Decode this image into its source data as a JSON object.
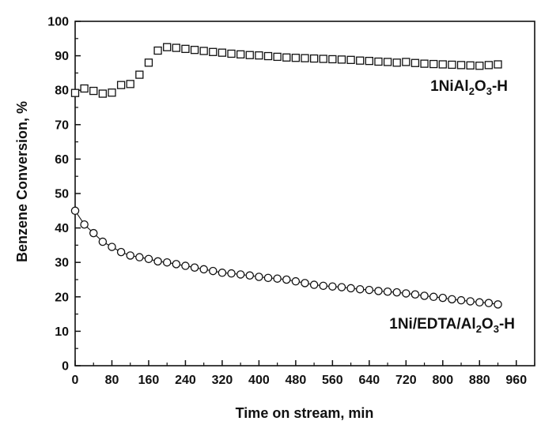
{
  "chart_data": {
    "type": "scatter",
    "title": "",
    "xlabel": "Time on stream, min",
    "ylabel": "Benzene Conversion, %",
    "xlim": [
      0,
      1000
    ],
    "ylim": [
      0,
      100
    ],
    "xticks": [
      0,
      80,
      160,
      240,
      320,
      400,
      480,
      560,
      640,
      720,
      800,
      880,
      960
    ],
    "yticks": [
      0,
      10,
      20,
      30,
      40,
      50,
      60,
      70,
      80,
      90,
      100
    ],
    "grid": false,
    "legend": "none (series labelled directly on plot)",
    "series": [
      {
        "name": "1NiAl2O3-H",
        "label_parts": [
          "1NiAl",
          "2",
          "O",
          "3",
          "-H"
        ],
        "marker": "square",
        "connected": false,
        "x": [
          0,
          20,
          40,
          60,
          80,
          100,
          120,
          140,
          160,
          180,
          200,
          220,
          240,
          260,
          280,
          300,
          320,
          340,
          360,
          380,
          400,
          420,
          440,
          460,
          480,
          500,
          520,
          540,
          560,
          580,
          600,
          620,
          640,
          660,
          680,
          700,
          720,
          740,
          760,
          780,
          800,
          820,
          840,
          860,
          880,
          900,
          920
        ],
        "y": [
          79.2,
          80.5,
          79.8,
          79.0,
          79.3,
          81.5,
          81.8,
          84.5,
          88.0,
          91.5,
          92.5,
          92.3,
          92.0,
          91.7,
          91.4,
          91.1,
          90.9,
          90.6,
          90.4,
          90.2,
          90.1,
          89.9,
          89.7,
          89.5,
          89.4,
          89.3,
          89.2,
          89.1,
          89.0,
          88.9,
          88.8,
          88.6,
          88.5,
          88.3,
          88.2,
          88.0,
          88.2,
          87.9,
          87.7,
          87.6,
          87.5,
          87.4,
          87.3,
          87.2,
          87.1,
          87.3,
          87.5
        ]
      },
      {
        "name": "1Ni/EDTA/Al2O3-H",
        "label_parts": [
          "1Ni/EDTA/Al",
          "2",
          "O",
          "3",
          "-H"
        ],
        "marker": "circle",
        "connected": true,
        "x": [
          0,
          20,
          40,
          60,
          80,
          100,
          120,
          140,
          160,
          180,
          200,
          220,
          240,
          260,
          280,
          300,
          320,
          340,
          360,
          380,
          400,
          420,
          440,
          460,
          480,
          500,
          520,
          540,
          560,
          580,
          600,
          620,
          640,
          660,
          680,
          700,
          720,
          740,
          760,
          780,
          800,
          820,
          840,
          860,
          880,
          900,
          920
        ],
        "y": [
          45.0,
          41.0,
          38.5,
          36.0,
          34.5,
          33.0,
          32.0,
          31.5,
          31.0,
          30.3,
          30.0,
          29.5,
          29.0,
          28.5,
          28.0,
          27.5,
          27.0,
          26.8,
          26.5,
          26.2,
          25.8,
          25.5,
          25.3,
          25.0,
          24.5,
          24.0,
          23.5,
          23.2,
          23.0,
          22.8,
          22.5,
          22.2,
          22.0,
          21.7,
          21.5,
          21.3,
          21.0,
          20.7,
          20.3,
          20.0,
          19.7,
          19.3,
          19.0,
          18.7,
          18.4,
          18.2,
          17.8
        ]
      }
    ]
  }
}
